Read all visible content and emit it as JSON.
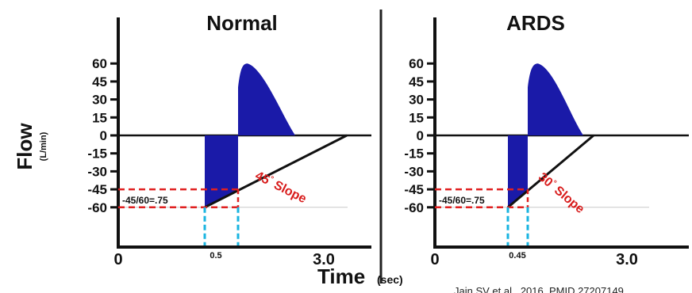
{
  "y_label": "Flow",
  "y_unit": "(L/min)",
  "x_label": "Time",
  "x_unit": "(sec)",
  "citation": "Jain SV et al., 2016, PMID 27207149",
  "colors": {
    "flow_fill": "#1a1aa8",
    "guide_red": "#e02020",
    "guide_blue": "#19b4e0",
    "slope_text": "#d81b1b"
  },
  "chart_data": [
    {
      "type": "area",
      "title": "Normal",
      "y_ticks": [
        60,
        45,
        30,
        15,
        0,
        -15,
        -30,
        -45,
        -60
      ],
      "x_tick_labels": [
        "0",
        "0.5",
        "3.0"
      ],
      "ylim": [
        -90,
        90
      ],
      "xlim": [
        0,
        3.5
      ],
      "inspiratory_peak": 60,
      "expiratory_peak": -60,
      "annotations": {
        "ratio": "-45/60=.75",
        "slope_value": "45",
        "slope_unit": "°",
        "slope_word": "Slope"
      }
    },
    {
      "type": "area",
      "title": "ARDS",
      "y_ticks": [
        60,
        45,
        30,
        15,
        0,
        -15,
        -30,
        -45,
        -60
      ],
      "x_tick_labels": [
        "0",
        "0.45",
        "3.0"
      ],
      "ylim": [
        -90,
        90
      ],
      "xlim": [
        0,
        3.5
      ],
      "inspiratory_peak": 60,
      "expiratory_peak": -60,
      "annotations": {
        "ratio": "-45/60=.75",
        "slope_value": "30",
        "slope_unit": "°",
        "slope_word": "Slope"
      }
    }
  ]
}
